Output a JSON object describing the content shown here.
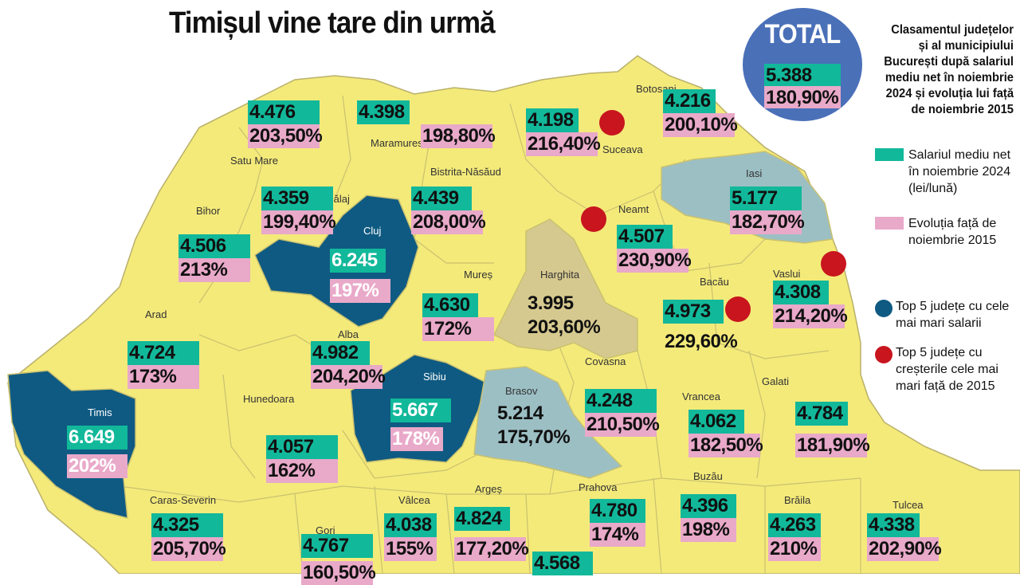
{
  "title": "Timișul vine tare din urmă",
  "total": {
    "label": "TOTAL",
    "salary": "5.388",
    "change": "180,90%"
  },
  "legend": {
    "title": "Clasamentul județelor și al municipiului București după salariul mediu net în noiembrie 2024 și evoluția lui față de noiembrie 2015",
    "salary_label": "Salariul mediu net în noiembrie 2024 (lei/lună)",
    "change_label": "Evoluția față de noiembrie 2015",
    "top_salary_label": "Top 5 județe cu cele mai mari salarii",
    "top_growth_label": "Top 5 județe cu creșterile cele mai mari față de 2015"
  },
  "colors": {
    "county_fill": "#f4ea7a",
    "top_salary_fill": "#0f5a82",
    "above_average_fill": "#9cbfc4",
    "harghita_fill": "#d6c98f",
    "salary_box": "#12b89a",
    "change_box": "#e9a9c9",
    "growth_dot": "#c8151e",
    "total_circle": "#4a70b8"
  },
  "county_names": {
    "botosani": "Botosani",
    "suceava": "Suceava",
    "maramures": "Maramures",
    "satu_mare": "Satu Mare",
    "bistrita": "Bistrita-Năsăud",
    "iasi": "Iasi",
    "neamt": "Neamt",
    "salaj": "Sălaj",
    "bihor": "Bihor",
    "cluj": "Cluj",
    "mures": "Mureș",
    "harghita": "Harghita",
    "bacau": "Bacău",
    "vaslui": "Vaslui",
    "arad": "Arad",
    "alba": "Alba",
    "sibiu": "Sibiu",
    "brasov": "Brasov",
    "covasna": "Covasna",
    "vrancea": "Vrancea",
    "galati": "Galati",
    "timis": "Timis",
    "hunedoara": "Hunedoara",
    "prahova": "Prahova",
    "buzau": "Buzău",
    "caras": "Caras-Severin",
    "valcea": "Vâlcea",
    "arges": "Argeș",
    "braila": "Brăila",
    "tulcea": "Tulcea",
    "gorj": "Gorj"
  },
  "stats": {
    "satu_mare": {
      "salary": "4.476",
      "change": "203,50%"
    },
    "maramures": {
      "salary": "4.398",
      "change": "198,80%"
    },
    "suceava": {
      "salary": "4.198",
      "change": "216,40%"
    },
    "botosani": {
      "salary": "4.216",
      "change": "200,10%"
    },
    "iasi": {
      "salary": "5.177",
      "change": "182,70%"
    },
    "salaj": {
      "salary": "4.359",
      "change": "199,40%"
    },
    "bistrita": {
      "salary": "4.439",
      "change": "208,00%"
    },
    "neamt": {
      "salary": "4.507",
      "change": "230,90%"
    },
    "bihor": {
      "salary": "4.506",
      "change": "213%"
    },
    "cluj": {
      "salary": "6.245",
      "change": "197%"
    },
    "vaslui": {
      "salary": "4.308",
      "change": "214,20%"
    },
    "mures": {
      "salary": "4.630",
      "change": "172%"
    },
    "harghita": {
      "salary": "3.995",
      "change": "203,60%"
    },
    "bacau": {
      "salary": "4.973",
      "change": "229,60%"
    },
    "arad": {
      "salary": "4.724",
      "change": "173%"
    },
    "alba": {
      "salary": "4.982",
      "change": "204,20%"
    },
    "sibiu": {
      "salary": "5.667",
      "change": "178%"
    },
    "brasov": {
      "salary": "5.214",
      "change": "175,70%"
    },
    "covasna": {
      "salary": "4.248",
      "change": "210,50%"
    },
    "vrancea": {
      "salary": "4.062",
      "change": "182,50%"
    },
    "galati": {
      "salary": "4.784",
      "change": "181,90%"
    },
    "timis": {
      "salary": "6.649",
      "change": "202%"
    },
    "hunedoara": {
      "salary": "4.057",
      "change": "162%"
    },
    "caras": {
      "salary": "4.325",
      "change": "205,70%"
    },
    "valcea": {
      "salary": "4.038",
      "change": "155%"
    },
    "arges": {
      "salary": "4.824",
      "change": "177,20%"
    },
    "prahova": {
      "salary": "4.780",
      "change": "174%"
    },
    "buzau": {
      "salary": "4.396",
      "change": "198%"
    },
    "braila": {
      "salary": "4.263",
      "change": "210%"
    },
    "tulcea": {
      "salary": "4.338",
      "change": "202,90%"
    },
    "gorj": {
      "salary": "4.767",
      "change": "160,50%"
    },
    "dambovita": {
      "salary": "4.568",
      "change": ""
    }
  }
}
